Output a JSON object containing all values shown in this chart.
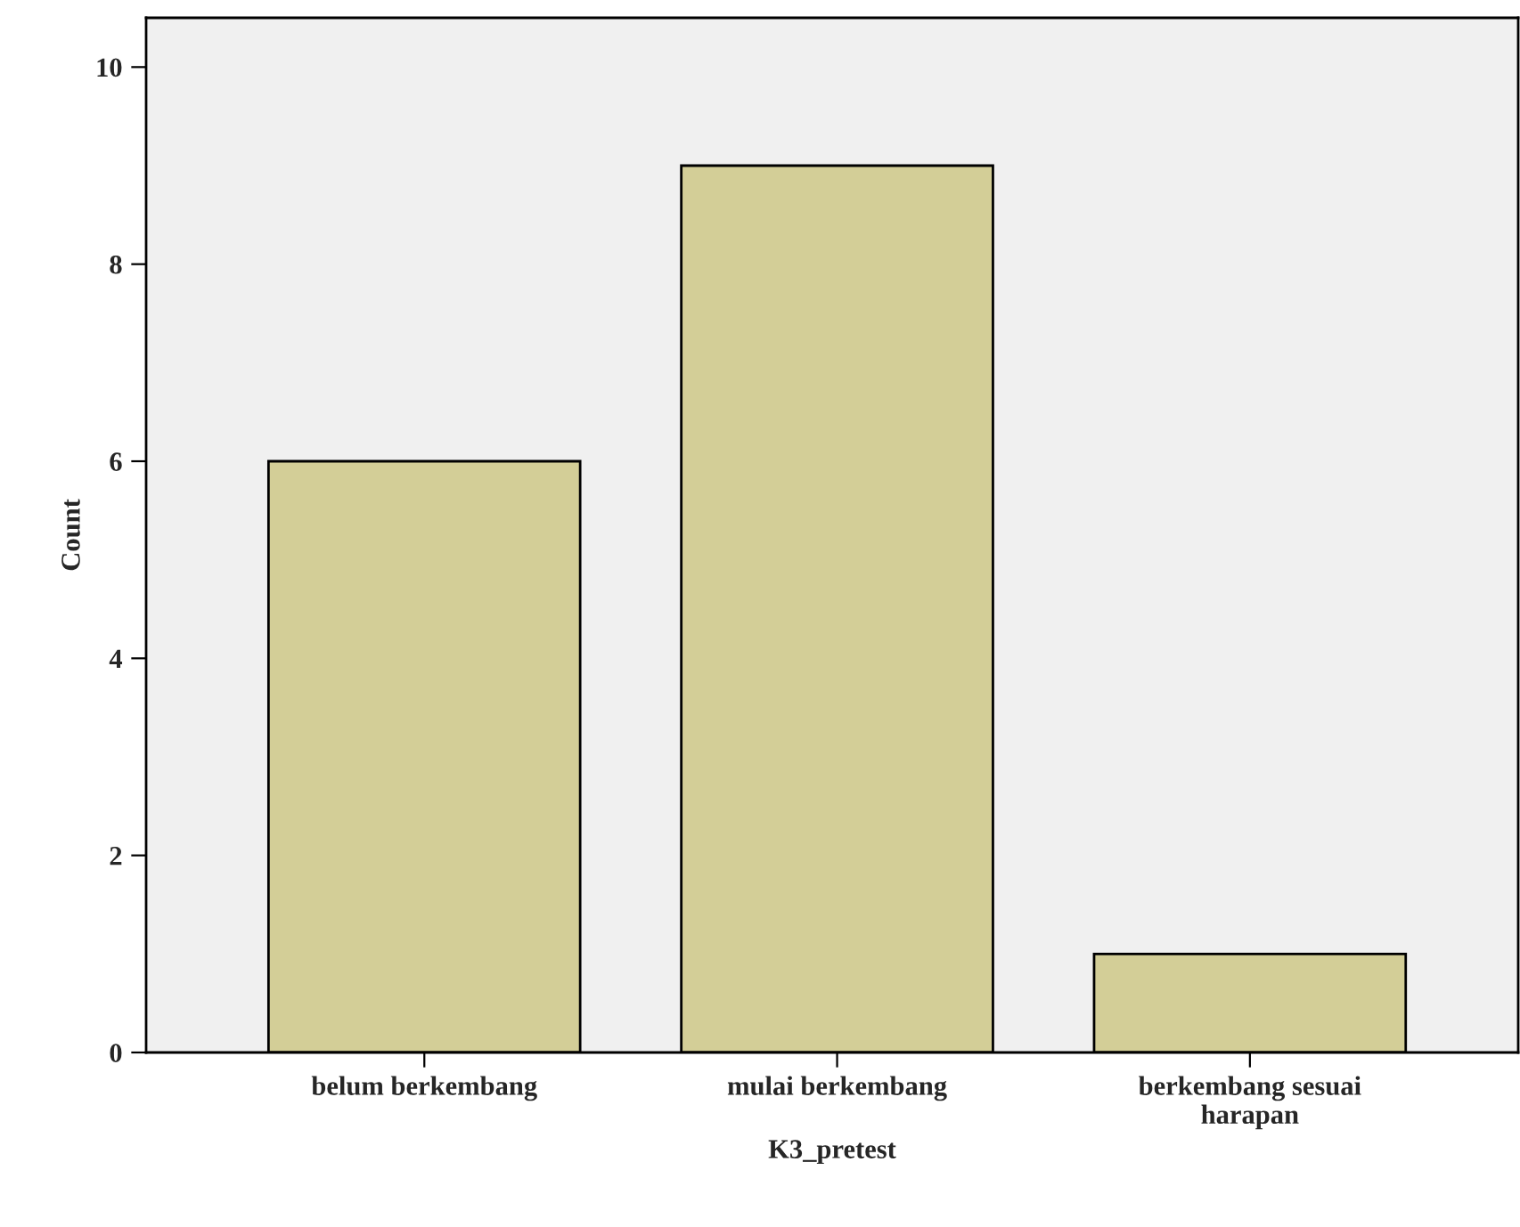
{
  "chart_data": {
    "type": "bar",
    "categories": [
      "belum berkembang",
      "mulai berkembang",
      "berkembang sesuai\nharapan"
    ],
    "values": [
      6,
      9,
      1
    ],
    "color": "#d3ce97",
    "xlabel": "K3_pretest",
    "ylabel": "Count",
    "ylim": [
      0,
      10.5
    ],
    "yticks": [
      0,
      2,
      4,
      6,
      8,
      10
    ],
    "grid": false
  }
}
